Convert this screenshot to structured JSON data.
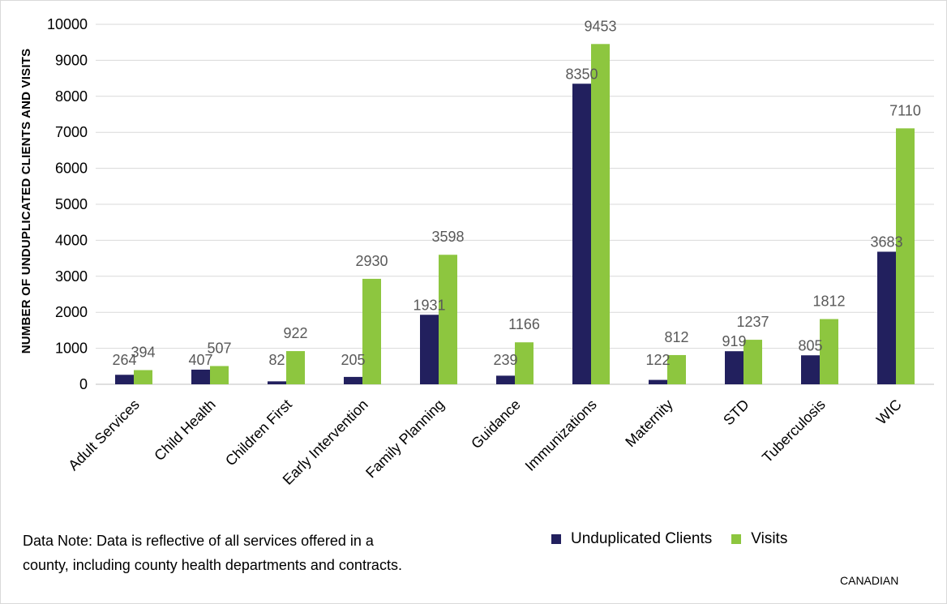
{
  "chart_data": {
    "type": "bar",
    "title": "",
    "ylabel": "NUMBER OF UNDUPLICATED CLIENTS AND VISITS",
    "xlabel": "",
    "ylim": [
      0,
      10000
    ],
    "yticks": [
      0,
      1000,
      2000,
      3000,
      4000,
      5000,
      6000,
      7000,
      8000,
      9000,
      10000
    ],
    "grid": true,
    "legend_position": "bottom-right",
    "categories": [
      "Adult Services",
      "Child Health",
      "Children First",
      "Early Intervention",
      "Family Planning",
      "Guidance",
      "Immunizations",
      "Maternity",
      "STD",
      "Tuberculosis",
      "WIC"
    ],
    "series": [
      {
        "name": "Unduplicated Clients",
        "color": "#22205e",
        "values": [
          264,
          407,
          82,
          205,
          1931,
          239,
          8350,
          122,
          919,
          805,
          3683
        ]
      },
      {
        "name": "Visits",
        "color": "#8dc63f",
        "values": [
          394,
          507,
          922,
          2930,
          3598,
          1166,
          9453,
          812,
          1237,
          1812,
          7110
        ]
      }
    ]
  },
  "note": {
    "line1": "Data Note: Data is reflective of all services offered in a",
    "line2": "county, including county health departments and contracts."
  },
  "region_label": "CANADIAN"
}
